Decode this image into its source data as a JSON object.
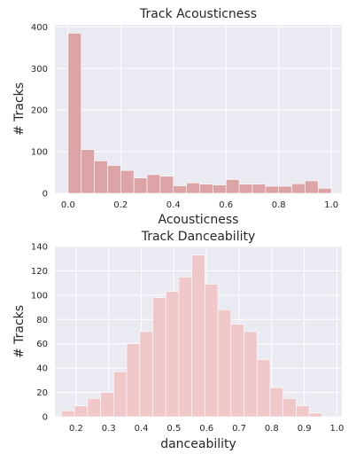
{
  "chart_data": [
    {
      "type": "bar",
      "title": "Track Acousticness",
      "xlabel": "Acousticness",
      "ylabel": "# Tracks",
      "xlim": [
        -0.05,
        1.04
      ],
      "ylim": [
        0,
        405
      ],
      "xticks": [
        "0.0",
        "0.2",
        "0.4",
        "0.6",
        "0.8",
        "1.0"
      ],
      "xtick_values": [
        0.0,
        0.2,
        0.4,
        0.6,
        0.8,
        1.0
      ],
      "yticks": [
        "0",
        "100",
        "200",
        "300",
        "400"
      ],
      "ytick_values": [
        0,
        100,
        200,
        300,
        400
      ],
      "grid": true,
      "bar_color": "#dda4a8",
      "bin_start": 0.0,
      "bin_width": 0.05,
      "values": [
        385,
        105,
        78,
        67,
        55,
        37,
        45,
        41,
        18,
        25,
        22,
        20,
        33,
        22,
        22,
        17,
        17,
        23,
        30,
        12
      ]
    },
    {
      "type": "bar",
      "title": "Track Danceability",
      "xlabel": "danceability",
      "ylabel": "# Tracks",
      "xlim": [
        0.135,
        1.015
      ],
      "ylim": [
        0,
        140
      ],
      "xticks": [
        "0.2",
        "0.3",
        "0.4",
        "0.5",
        "0.6",
        "0.7",
        "0.8",
        "0.9",
        "1.0"
      ],
      "xtick_values": [
        0.2,
        0.3,
        0.4,
        0.5,
        0.6,
        0.7,
        0.8,
        0.9,
        1.0
      ],
      "yticks": [
        "0",
        "20",
        "40",
        "60",
        "80",
        "100",
        "120",
        "140"
      ],
      "ytick_values": [
        0,
        20,
        40,
        60,
        80,
        100,
        120,
        140
      ],
      "grid": true,
      "bar_color": "#f0c8c9",
      "bin_start": 0.155,
      "bin_width": 0.04,
      "values": [
        5,
        9,
        15,
        20,
        37,
        60,
        70,
        98,
        103,
        115,
        133,
        109,
        88,
        76,
        70,
        47,
        24,
        15,
        9,
        3
      ]
    }
  ]
}
